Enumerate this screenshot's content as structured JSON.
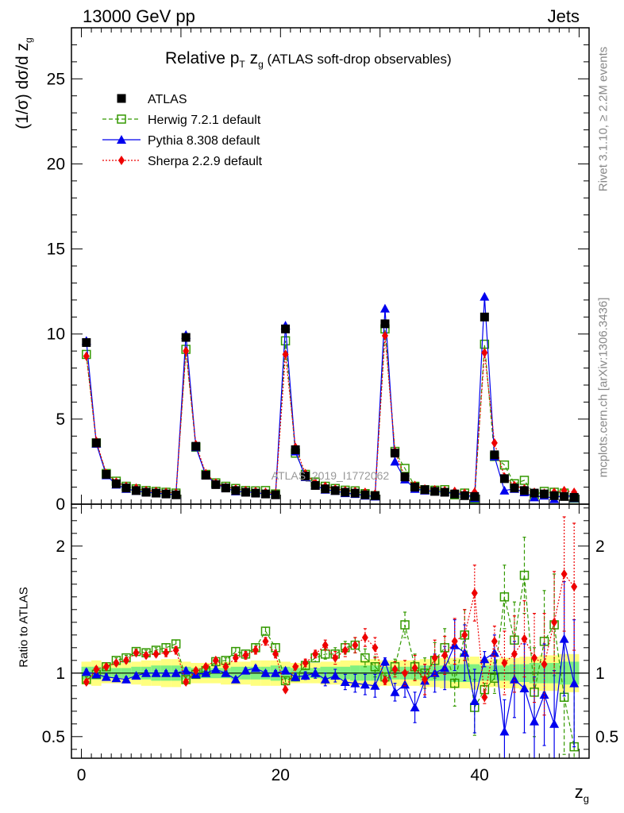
{
  "header": {
    "energy": "13000 GeV pp",
    "category": "Jets"
  },
  "side_labels": {
    "rivet": "Rivet 3.1.10, ≥ 2.2M events",
    "mcplots": "mcplots.cern.ch [arXiv:1306.3436]"
  },
  "watermark": "ATLAS_2019_I1772062",
  "chart_data": [
    {
      "type": "scatter",
      "title_main": "Relative p",
      "title_sub_T": "T",
      "title_mid": " z",
      "title_sub_g": "g",
      "title_rest": " (ATLAS soft-drop observables)",
      "ylabel": "(1/σ) dσ/d z",
      "ylabel_sub": "g",
      "xlim": [
        -1,
        51
      ],
      "ylim": [
        0,
        28
      ],
      "yticks": [
        0,
        5,
        10,
        15,
        20,
        25
      ],
      "legend_position": "top-left",
      "legend": [
        "ATLAS",
        "Herwig 7.2.1 default",
        "Pythia 8.308 default",
        "Sherpa 2.2.9 default"
      ],
      "x": [
        0.5,
        1.5,
        2.5,
        3.5,
        4.5,
        5.5,
        6.5,
        7.5,
        8.5,
        9.5,
        10.5,
        11.5,
        12.5,
        13.5,
        14.5,
        15.5,
        16.5,
        17.5,
        18.5,
        19.5,
        20.5,
        21.5,
        22.5,
        23.5,
        24.5,
        25.5,
        26.5,
        27.5,
        28.5,
        29.5,
        30.5,
        31.5,
        32.5,
        33.5,
        34.5,
        35.5,
        36.5,
        37.5,
        38.5,
        39.5,
        40.5,
        41.5,
        42.5,
        43.5,
        44.5,
        45.5,
        46.5,
        47.5,
        48.5,
        49.5
      ],
      "series": [
        {
          "name": "ATLAS",
          "color": "#000000",
          "values": [
            9.5,
            3.6,
            1.75,
            1.2,
            0.95,
            0.8,
            0.7,
            0.65,
            0.6,
            0.55,
            9.8,
            3.4,
            1.7,
            1.15,
            0.95,
            0.8,
            0.7,
            0.65,
            0.6,
            0.55,
            10.3,
            3.2,
            1.65,
            1.1,
            0.9,
            0.8,
            0.7,
            0.65,
            0.55,
            0.5,
            10.6,
            3.0,
            1.6,
            1.0,
            0.85,
            0.75,
            0.7,
            0.6,
            0.5,
            0.45,
            11.0,
            2.9,
            1.5,
            0.95,
            0.8,
            0.65,
            0.6,
            0.5,
            0.45,
            0.4
          ]
        },
        {
          "name": "Herwig 7.2.1 default",
          "color": "#339900",
          "values": [
            8.8,
            3.6,
            1.8,
            1.35,
            1.05,
            0.9,
            0.8,
            0.75,
            0.7,
            0.65,
            9.1,
            3.35,
            1.75,
            1.25,
            1.05,
            0.92,
            0.8,
            0.78,
            0.8,
            0.6,
            9.6,
            3.0,
            1.75,
            1.3,
            1.05,
            0.92,
            0.82,
            0.78,
            0.62,
            0.5,
            10.3,
            3.1,
            2.1,
            1.05,
            0.85,
            0.82,
            0.85,
            0.55,
            0.65,
            0.32,
            9.4,
            2.8,
            2.3,
            1.2,
            1.4,
            0.55,
            0.75,
            0.7,
            0.65,
            0.35
          ]
        },
        {
          "name": "Pythia 8.308 default",
          "color": "#0000ee",
          "values": [
            9.6,
            3.55,
            1.7,
            1.15,
            0.9,
            0.78,
            0.7,
            0.65,
            0.6,
            0.55,
            9.95,
            3.35,
            1.7,
            1.2,
            0.95,
            0.75,
            0.72,
            0.68,
            0.6,
            0.55,
            10.5,
            3.1,
            1.6,
            1.1,
            0.85,
            0.78,
            0.65,
            0.6,
            0.5,
            0.45,
            11.5,
            2.5,
            1.45,
            0.9,
            0.8,
            0.75,
            0.72,
            0.6,
            0.6,
            0.35,
            12.2,
            2.8,
            0.8,
            0.9,
            0.7,
            0.4,
            0.5,
            0.3,
            0.6,
            0.35
          ]
        },
        {
          "name": "Sherpa 2.2.9 default",
          "color": "#ee0000",
          "values": [
            8.7,
            3.7,
            1.8,
            1.3,
            1.05,
            0.95,
            0.8,
            0.75,
            0.7,
            0.65,
            9.0,
            3.5,
            1.8,
            1.25,
            1.0,
            0.9,
            0.8,
            0.75,
            0.7,
            0.6,
            8.8,
            3.35,
            1.8,
            1.25,
            1.05,
            0.9,
            0.8,
            0.75,
            0.7,
            0.6,
            9.9,
            3.1,
            1.6,
            1.1,
            0.9,
            0.85,
            0.8,
            0.75,
            0.65,
            0.7,
            8.9,
            3.6,
            1.6,
            1.1,
            0.9,
            0.7,
            0.65,
            0.7,
            0.8,
            0.7
          ]
        }
      ]
    },
    {
      "type": "scatter",
      "ylabel": "Ratio to ATLAS",
      "xlabel": "z",
      "xlabel_sub": "g",
      "xlim": [
        -1,
        51
      ],
      "ylim": [
        0.33,
        2.33
      ],
      "yticks": [
        0.5,
        1,
        2
      ],
      "xticks": [
        0,
        20,
        40
      ],
      "x": [
        0.5,
        1.5,
        2.5,
        3.5,
        4.5,
        5.5,
        6.5,
        7.5,
        8.5,
        9.5,
        10.5,
        11.5,
        12.5,
        13.5,
        14.5,
        15.5,
        16.5,
        17.5,
        18.5,
        19.5,
        20.5,
        21.5,
        22.5,
        23.5,
        24.5,
        25.5,
        26.5,
        27.5,
        28.5,
        29.5,
        30.5,
        31.5,
        32.5,
        33.5,
        34.5,
        35.5,
        36.5,
        37.5,
        38.5,
        39.5,
        40.5,
        41.5,
        42.5,
        43.5,
        44.5,
        45.5,
        46.5,
        47.5,
        48.5,
        49.5
      ],
      "uncertainty_inner": [
        0.05,
        0.05,
        0.04,
        0.04,
        0.04,
        0.05,
        0.05,
        0.06,
        0.06,
        0.06,
        0.05,
        0.04,
        0.04,
        0.04,
        0.04,
        0.05,
        0.05,
        0.05,
        0.05,
        0.06,
        0.05,
        0.04,
        0.04,
        0.04,
        0.05,
        0.05,
        0.05,
        0.06,
        0.06,
        0.06,
        0.05,
        0.05,
        0.05,
        0.05,
        0.06,
        0.06,
        0.06,
        0.07,
        0.07,
        0.07,
        0.06,
        0.06,
        0.06,
        0.07,
        0.07,
        0.08,
        0.08,
        0.08,
        0.09,
        0.09
      ],
      "uncertainty_outer": [
        0.09,
        0.1,
        0.08,
        0.08,
        0.08,
        0.09,
        0.1,
        0.1,
        0.11,
        0.11,
        0.09,
        0.08,
        0.08,
        0.08,
        0.09,
        0.09,
        0.09,
        0.1,
        0.1,
        0.1,
        0.09,
        0.08,
        0.08,
        0.08,
        0.09,
        0.09,
        0.1,
        0.1,
        0.1,
        0.11,
        0.1,
        0.1,
        0.1,
        0.1,
        0.11,
        0.11,
        0.12,
        0.12,
        0.12,
        0.13,
        0.11,
        0.11,
        0.12,
        0.12,
        0.13,
        0.13,
        0.14,
        0.14,
        0.15,
        0.15
      ],
      "series": [
        {
          "name": "Herwig 7.2.1 default",
          "color": "#339900",
          "values": [
            0.95,
            0.99,
            1.05,
            1.1,
            1.12,
            1.17,
            1.16,
            1.18,
            1.2,
            1.23,
            0.95,
            0.99,
            1.02,
            1.09,
            1.1,
            1.17,
            1.15,
            1.2,
            1.33,
            1.2,
            0.94,
            0.97,
            1.06,
            1.12,
            1.15,
            1.15,
            1.2,
            1.22,
            1.12,
            1.05,
            0.97,
            1.05,
            1.38,
            1.05,
            1.0,
            1.1,
            1.2,
            0.92,
            1.3,
            0.73,
            0.87,
            0.96,
            1.6,
            1.26,
            1.77,
            0.85,
            1.25,
            1.38,
            0.81,
            0.42
          ],
          "err": [
            0.02,
            0.02,
            0.02,
            0.02,
            0.02,
            0.02,
            0.02,
            0.02,
            0.03,
            0.03,
            0.02,
            0.02,
            0.02,
            0.02,
            0.02,
            0.03,
            0.03,
            0.03,
            0.03,
            0.03,
            0.02,
            0.02,
            0.03,
            0.03,
            0.04,
            0.05,
            0.05,
            0.06,
            0.07,
            0.08,
            0.03,
            0.06,
            0.1,
            0.1,
            0.12,
            0.14,
            0.15,
            0.18,
            0.2,
            0.22,
            0.05,
            0.12,
            0.25,
            0.3,
            0.3,
            0.35,
            0.4,
            0.4,
            0.45,
            0.5
          ]
        },
        {
          "name": "Pythia 8.308 default",
          "color": "#0000ee",
          "values": [
            1.01,
            0.99,
            0.97,
            0.96,
            0.95,
            0.98,
            1.0,
            1.0,
            1.0,
            1.0,
            1.02,
            0.99,
            1.0,
            1.03,
            1.0,
            0.95,
            1.02,
            1.04,
            1.0,
            1.0,
            1.02,
            0.97,
            0.98,
            1.0,
            0.95,
            0.98,
            0.93,
            0.92,
            0.91,
            0.9,
            1.09,
            0.85,
            0.91,
            0.73,
            0.94,
            1.0,
            1.04,
            1.22,
            1.16,
            0.78,
            1.11,
            1.16,
            0.54,
            0.95,
            0.88,
            0.62,
            0.83,
            0.6,
            1.27,
            0.92
          ],
          "err": [
            0.02,
            0.02,
            0.02,
            0.02,
            0.02,
            0.02,
            0.02,
            0.02,
            0.02,
            0.02,
            0.02,
            0.02,
            0.02,
            0.02,
            0.02,
            0.02,
            0.02,
            0.02,
            0.02,
            0.02,
            0.02,
            0.03,
            0.03,
            0.04,
            0.05,
            0.05,
            0.06,
            0.07,
            0.08,
            0.09,
            0.03,
            0.07,
            0.1,
            0.12,
            0.13,
            0.15,
            0.17,
            0.2,
            0.22,
            0.25,
            0.06,
            0.14,
            0.25,
            0.3,
            0.35,
            0.35,
            0.4,
            0.42,
            0.45,
            0.5
          ]
        },
        {
          "name": "Sherpa 2.2.9 default",
          "color": "#ee0000",
          "values": [
            0.93,
            1.03,
            1.05,
            1.08,
            1.1,
            1.16,
            1.14,
            1.15,
            1.16,
            1.18,
            0.93,
            1.02,
            1.05,
            1.1,
            1.05,
            1.12,
            1.14,
            1.18,
            1.25,
            1.15,
            0.87,
            1.05,
            1.08,
            1.15,
            1.22,
            1.12,
            1.18,
            1.22,
            1.28,
            1.2,
            0.94,
            1.03,
            1.0,
            1.04,
            0.95,
            1.12,
            1.14,
            1.25,
            1.3,
            1.63,
            0.81,
            1.25,
            1.08,
            1.15,
            1.27,
            1.12,
            1.07,
            1.4,
            1.78,
            1.68
          ],
          "err": [
            0.02,
            0.02,
            0.02,
            0.02,
            0.02,
            0.02,
            0.02,
            0.02,
            0.03,
            0.03,
            0.02,
            0.02,
            0.02,
            0.02,
            0.02,
            0.03,
            0.03,
            0.03,
            0.03,
            0.03,
            0.02,
            0.02,
            0.03,
            0.03,
            0.04,
            0.05,
            0.05,
            0.06,
            0.07,
            0.08,
            0.03,
            0.06,
            0.1,
            0.1,
            0.12,
            0.14,
            0.15,
            0.18,
            0.2,
            0.22,
            0.05,
            0.12,
            0.25,
            0.3,
            0.3,
            0.35,
            0.4,
            0.4,
            0.45,
            0.5
          ]
        }
      ]
    }
  ]
}
